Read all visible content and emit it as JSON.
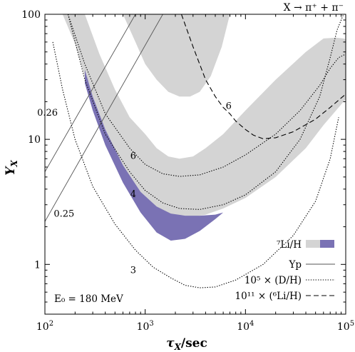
{
  "chart_data": {
    "type": "line",
    "title": "X → π⁺ + π⁻",
    "annotation": "E₀ = 180 MeV",
    "xlabel": "τX/sec",
    "ylabel": "YX",
    "xscale": "log",
    "yscale": "log",
    "xlim": [
      100,
      100000
    ],
    "ylim": [
      0.4,
      100
    ],
    "grid": false,
    "legend_position": "bottom-right",
    "x_ticks": [
      {
        "value": 100,
        "base": "10",
        "exp": "2"
      },
      {
        "value": 1000,
        "base": "10",
        "exp": "3"
      },
      {
        "value": 10000,
        "base": "10",
        "exp": "4"
      },
      {
        "value": 100000,
        "base": "10",
        "exp": "5"
      }
    ],
    "y_ticks": [
      {
        "value": 1,
        "label": "1"
      },
      {
        "value": 10,
        "label": "10"
      },
      {
        "value": 100,
        "label": "100"
      }
    ],
    "legend": [
      {
        "label": "⁷Li/H",
        "style": "band",
        "colors": [
          "#d4d4d4",
          "#7a72b4"
        ]
      },
      {
        "label": "Yp",
        "style": "solid"
      },
      {
        "label": "10⁵ × (D/H)",
        "style": "dotted"
      },
      {
        "label": "10¹¹ × (⁶Li/H)",
        "style": "dashed"
      }
    ],
    "colors": {
      "band_gray": "#d4d4d4",
      "band_purple": "#7a72b4",
      "line": "#000000",
      "yp_line": "#555555"
    },
    "series": [
      {
        "style": "solid",
        "label": "0.26",
        "x": [
          100,
          800
        ],
        "y": [
          5.5,
          100
        ]
      },
      {
        "style": "solid",
        "label": "0.25",
        "x": [
          100,
          1500
        ],
        "y": [
          2.2,
          100
        ]
      },
      {
        "style": "dotted",
        "label": "3",
        "x": [
          120,
          150,
          200,
          300,
          500,
          800,
          1200,
          1800,
          2500,
          3500,
          5000,
          8000,
          15000,
          30000,
          50000,
          70000,
          85000
        ],
        "y": [
          60,
          25,
          10,
          4.2,
          2.1,
          1.3,
          0.95,
          0.78,
          0.68,
          0.65,
          0.66,
          0.75,
          1.0,
          1.7,
          3.2,
          7,
          15
        ]
      },
      {
        "style": "dotted",
        "label": "4",
        "x": [
          170,
          250,
          400,
          700,
          1000,
          1500,
          2200,
          3500,
          6000,
          10000,
          20000,
          35000,
          55000,
          70000,
          82000,
          95000
        ],
        "y": [
          100,
          30,
          11,
          5.5,
          3.9,
          3.1,
          2.8,
          2.75,
          3.0,
          3.6,
          5.5,
          10,
          22,
          45,
          75,
          100
        ]
      },
      {
        "style": "dotted",
        "label": "6",
        "x": [
          170,
          250,
          400,
          700,
          1000,
          1500,
          2200,
          3500,
          6000,
          10000,
          20000,
          35000,
          55000,
          70000,
          85000,
          100000
        ],
        "y": [
          100,
          40,
          16,
          8.5,
          6.3,
          5.3,
          5.05,
          5.2,
          6.0,
          7.5,
          11,
          17,
          27,
          37,
          45,
          48
        ]
      },
      {
        "style": "dashed",
        "label": "6",
        "x": [
          2300,
          3000,
          4000,
          5000,
          6000,
          7000,
          8000,
          10000,
          12000,
          15000,
          20000,
          30000,
          50000,
          70000,
          100000
        ],
        "y": [
          100,
          55,
          30,
          22,
          18,
          16,
          14,
          12,
          10.8,
          10.1,
          10.3,
          11.5,
          14.5,
          18,
          23
        ]
      },
      {
        "style": "band",
        "label": "⁷Li/H (6)",
        "x": [
          600,
          800,
          1000,
          1300,
          1700,
          2200,
          2800,
          3500,
          4500,
          5800,
          7000
        ],
        "lower": [
          100,
          60,
          40,
          30,
          24,
          22,
          22,
          24,
          32,
          55,
          100
        ],
        "upper": [
          100,
          100,
          100,
          100,
          100,
          100,
          100,
          100,
          100,
          100,
          100
        ]
      },
      {
        "style": "band",
        "label": "⁷Li/H (4)",
        "x": [
          150,
          200,
          250,
          350,
          500,
          700,
          1000,
          1300,
          1700,
          2200,
          3000,
          4000,
          6000,
          10000,
          20000,
          40000,
          60000,
          80000,
          95000,
          100000
        ],
        "lower": [
          100,
          58,
          32,
          14,
          7.5,
          4.8,
          3.4,
          2.8,
          2.5,
          2.4,
          2.4,
          2.5,
          2.8,
          3.4,
          5.0,
          8.5,
          13,
          17,
          20,
          21
        ],
        "upper": [
          100,
          100,
          100,
          48,
          25,
          15,
          11,
          8.5,
          7.3,
          7.0,
          7.3,
          8.5,
          11,
          17,
          30,
          50,
          64,
          65,
          64,
          63
        ]
      },
      {
        "style": "band-purple",
        "label": "⁷Li/H (3)",
        "x": [
          250,
          300,
          400,
          600,
          900,
          1300,
          1800,
          2500,
          3500,
          5000,
          6000
        ],
        "lower": [
          28,
          17,
          9,
          4.5,
          2.6,
          1.8,
          1.55,
          1.6,
          1.85,
          2.3,
          2.6
        ],
        "upper": [
          36,
          22,
          12,
          6.2,
          3.8,
          2.9,
          2.55,
          2.45,
          2.45,
          2.5,
          2.6
        ]
      }
    ],
    "curve_labels": [
      {
        "text": "0.26",
        "x": 106,
        "y": 15.5
      },
      {
        "text": "0.25",
        "x": 155,
        "y": 2.4
      },
      {
        "text": "6",
        "x": 760,
        "y": 7.0
      },
      {
        "text": "4",
        "x": 760,
        "y": 3.45
      },
      {
        "text": "3",
        "x": 760,
        "y": 0.85
      },
      {
        "text": "6",
        "x": 6800,
        "y": 17.5
      }
    ]
  }
}
